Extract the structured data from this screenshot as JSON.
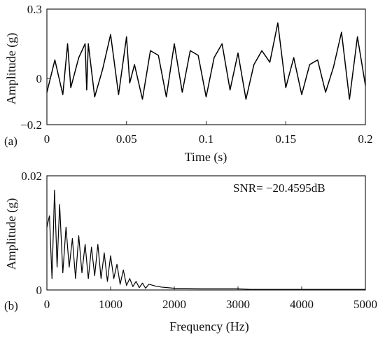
{
  "chart_data": [
    {
      "type": "line",
      "panel_label": "(a)",
      "title": "",
      "xlabel": "Time (s)",
      "ylabel": "Amplitude (g)",
      "xlim": [
        0,
        0.2
      ],
      "ylim": [
        -0.2,
        0.3
      ],
      "xticks": [
        0,
        0.05,
        0.1,
        0.15,
        0.2
      ],
      "xtick_labels": [
        "0",
        "0.05",
        "0.1",
        "0.15",
        "0.2"
      ],
      "yticks": [
        -0.2,
        0,
        0.3
      ],
      "ytick_labels": [
        "−0.2",
        "0",
        "0.3"
      ],
      "grid": false,
      "line_color": "#000000",
      "x": [
        0,
        0.005,
        0.01,
        0.013,
        0.015,
        0.02,
        0.024,
        0.025,
        0.026,
        0.03,
        0.035,
        0.04,
        0.045,
        0.05,
        0.052,
        0.055,
        0.06,
        0.065,
        0.07,
        0.075,
        0.08,
        0.085,
        0.09,
        0.095,
        0.1,
        0.105,
        0.11,
        0.115,
        0.12,
        0.125,
        0.13,
        0.135,
        0.14,
        0.145,
        0.15,
        0.155,
        0.16,
        0.165,
        0.17,
        0.175,
        0.18,
        0.185,
        0.19,
        0.195,
        0.2
      ],
      "y": [
        -0.06,
        0.08,
        -0.07,
        0.15,
        -0.04,
        0.09,
        0.15,
        -0.05,
        0.15,
        -0.08,
        0.04,
        0.19,
        -0.07,
        0.18,
        -0.02,
        0.06,
        -0.09,
        0.12,
        0.1,
        -0.08,
        0.15,
        -0.06,
        0.12,
        0.1,
        -0.08,
        0.09,
        0.15,
        -0.05,
        0.11,
        -0.09,
        0.06,
        0.12,
        0.07,
        0.24,
        -0.04,
        0.09,
        -0.07,
        0.06,
        0.08,
        -0.06,
        0.05,
        0.2,
        -0.09,
        0.18,
        -0.03
      ]
    },
    {
      "type": "line",
      "panel_label": "(b)",
      "title": "",
      "xlabel": "Frequency (Hz)",
      "ylabel": "Amplitude (g)",
      "xlim": [
        0,
        5000
      ],
      "ylim": [
        0,
        0.02
      ],
      "xticks": [
        0,
        1000,
        2000,
        3000,
        4000,
        5000
      ],
      "xtick_labels": [
        "0",
        "1000",
        "2000",
        "3000",
        "4000",
        "5000"
      ],
      "yticks": [
        0,
        0.02
      ],
      "ytick_labels": [
        "0",
        "0.02"
      ],
      "grid": false,
      "line_color": "#000000",
      "annotation": "SNR= −20.4595dB",
      "x": [
        0,
        40,
        80,
        120,
        160,
        200,
        250,
        300,
        350,
        400,
        450,
        500,
        550,
        600,
        650,
        700,
        750,
        800,
        850,
        900,
        950,
        1000,
        1050,
        1100,
        1150,
        1200,
        1250,
        1300,
        1350,
        1400,
        1450,
        1500,
        1550,
        1600,
        1700,
        1800,
        1900,
        2000,
        2200,
        2400,
        2600,
        2800,
        3000,
        3200,
        3400,
        3600,
        3800,
        4000,
        4200,
        4400,
        4600,
        4800,
        5000
      ],
      "y": [
        0.011,
        0.013,
        0.002,
        0.0175,
        0.004,
        0.015,
        0.003,
        0.011,
        0.004,
        0.009,
        0.002,
        0.0095,
        0.003,
        0.008,
        0.002,
        0.0075,
        0.0025,
        0.008,
        0.002,
        0.0065,
        0.0015,
        0.006,
        0.002,
        0.0045,
        0.001,
        0.0035,
        0.0008,
        0.002,
        0.0006,
        0.0015,
        0.0004,
        0.0012,
        0.0003,
        0.001,
        0.0007,
        0.0005,
        0.0004,
        0.0003,
        0.0003,
        0.0002,
        0.0002,
        0.0002,
        0.0002,
        0.0001,
        0.0001,
        0.0001,
        0.0001,
        0.0001,
        0.0001,
        0.0001,
        0.0001,
        0.0001,
        0.0001
      ]
    }
  ]
}
